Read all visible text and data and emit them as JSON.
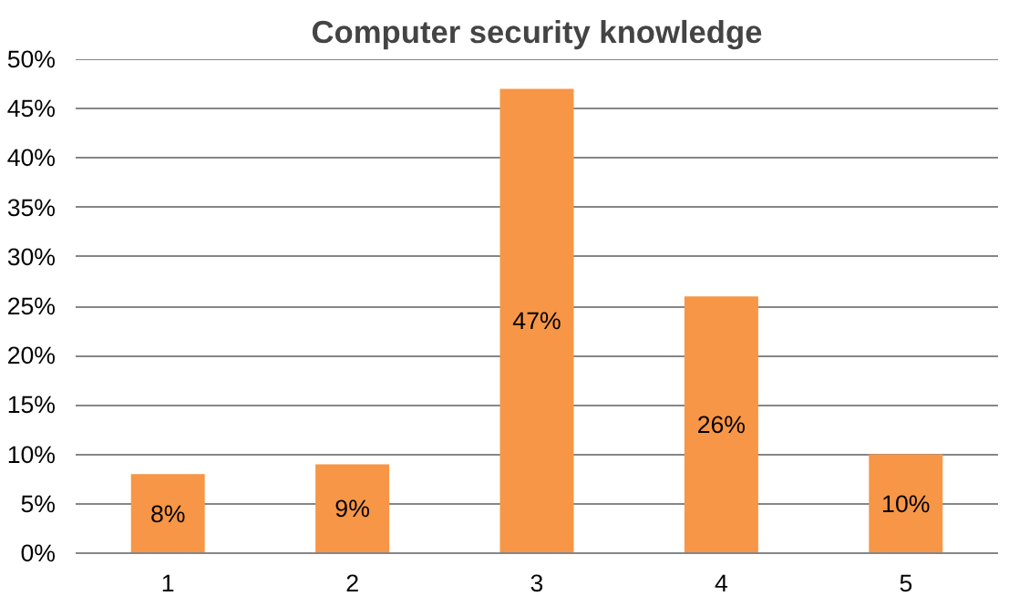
{
  "chart_data": {
    "type": "bar",
    "title": "Computer security knowledge",
    "categories": [
      "1",
      "2",
      "3",
      "4",
      "5"
    ],
    "values": [
      8,
      9,
      47,
      26,
      10
    ],
    "value_labels": [
      "8%",
      "9%",
      "47%",
      "26%",
      "10%"
    ],
    "color": "#f79646",
    "ylim": [
      0,
      50
    ],
    "yticks": [
      {
        "value": 0,
        "label": "0%"
      },
      {
        "value": 5,
        "label": "5%"
      },
      {
        "value": 10,
        "label": "10%"
      },
      {
        "value": 15,
        "label": "15%"
      },
      {
        "value": 20,
        "label": "20%"
      },
      {
        "value": 25,
        "label": "25%"
      },
      {
        "value": 30,
        "label": "30%"
      },
      {
        "value": 35,
        "label": "35%"
      },
      {
        "value": 40,
        "label": "40%"
      },
      {
        "value": 45,
        "label": "45%"
      },
      {
        "value": 50,
        "label": "50%"
      }
    ],
    "grid": "y"
  }
}
